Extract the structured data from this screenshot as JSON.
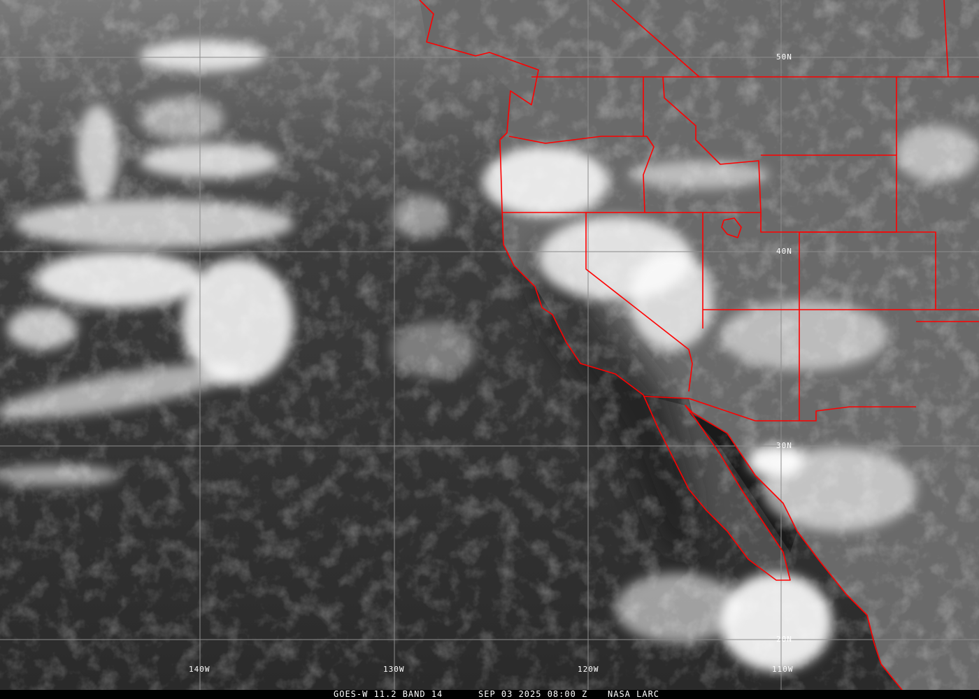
{
  "image": {
    "type": "satellite infrared imagery with political boundary overlay",
    "colors": {
      "boundaries": "#ff0000",
      "grid": "#8c8c8c",
      "labels": "#ffffff",
      "ocean": "#3a3a3a",
      "land": "#6e6e6e",
      "clouds": "#ffffff"
    }
  },
  "grid_labels": {
    "lat": [
      "50N",
      "40N",
      "30N",
      "20N"
    ],
    "lon": [
      "140W",
      "130W",
      "120W",
      "110W"
    ]
  },
  "caption": {
    "satellite": "GOES-W 11.2 BAND 14",
    "datetime": "SEP 03 2025 08:00 Z",
    "source": "NASA LARC"
  }
}
